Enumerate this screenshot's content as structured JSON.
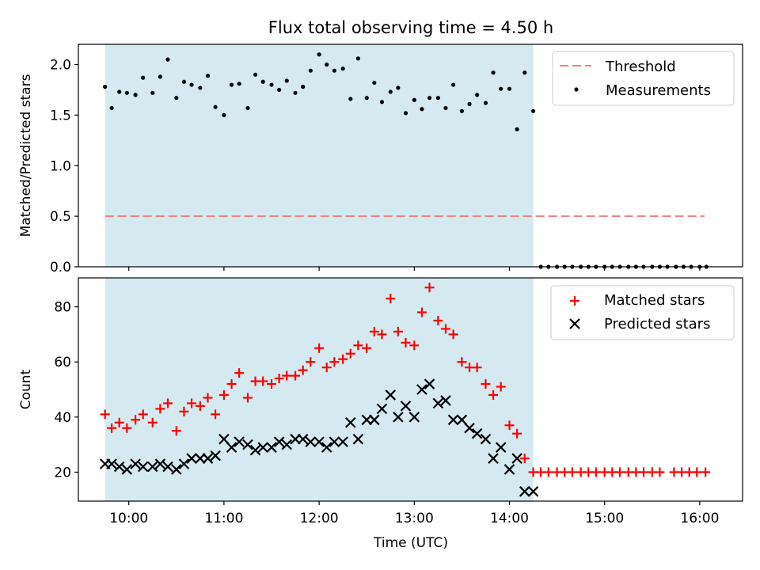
{
  "chart_data": [
    {
      "type": "scatter",
      "title": "Flux total observing time = 4.50 h",
      "xlabel": "",
      "ylabel": "Matched/Predicted stars",
      "xlim": [
        9.47,
        16.45
      ],
      "ylim": [
        0.0,
        2.2
      ],
      "yticks": [
        0.0,
        0.5,
        1.0,
        1.5,
        2.0
      ],
      "ytick_labels": [
        "0.0",
        "0.5",
        "1.0",
        "1.5",
        "2.0"
      ],
      "observing_window": [
        9.75,
        14.25
      ],
      "shade_color": "#d4eaf0",
      "legend_position": "upper right",
      "threshold": {
        "name": "Threshold",
        "y": 0.5,
        "x": [
          9.75,
          16.05
        ],
        "color": "#f08080",
        "style": "dashed"
      },
      "series": [
        {
          "name": "Measurements",
          "color": "#000000",
          "marker": "dot",
          "x": [
            9.75,
            9.82,
            9.9,
            9.98,
            10.07,
            10.15,
            10.25,
            10.33,
            10.41,
            10.5,
            10.58,
            10.66,
            10.75,
            10.83,
            10.91,
            11.0,
            11.08,
            11.16,
            11.25,
            11.33,
            11.41,
            11.5,
            11.58,
            11.66,
            11.75,
            11.83,
            11.91,
            12.0,
            12.08,
            12.16,
            12.25,
            12.33,
            12.41,
            12.5,
            12.58,
            12.66,
            12.75,
            12.83,
            12.91,
            13.0,
            13.08,
            13.16,
            13.25,
            13.33,
            13.41,
            13.5,
            13.58,
            13.66,
            13.75,
            13.83,
            13.91,
            14.0,
            14.08,
            14.16,
            14.25,
            14.33,
            14.41,
            14.5,
            14.58,
            14.66,
            14.75,
            14.83,
            14.91,
            15.0,
            15.08,
            15.16,
            15.25,
            15.33,
            15.41,
            15.5,
            15.58,
            15.66,
            15.75,
            15.83,
            15.91,
            16.0,
            16.07
          ],
          "y": [
            1.78,
            1.57,
            1.73,
            1.72,
            1.7,
            1.87,
            1.72,
            1.88,
            2.05,
            1.67,
            1.83,
            1.8,
            1.77,
            1.89,
            1.58,
            1.5,
            1.8,
            1.81,
            1.57,
            1.9,
            1.83,
            1.8,
            1.75,
            1.84,
            1.72,
            1.78,
            1.94,
            2.1,
            2.0,
            1.94,
            1.96,
            1.66,
            2.06,
            1.67,
            1.82,
            1.63,
            1.73,
            1.77,
            1.52,
            1.65,
            1.56,
            1.67,
            1.67,
            1.57,
            1.8,
            1.54,
            1.61,
            1.7,
            1.62,
            1.92,
            1.76,
            1.76,
            1.36,
            1.92,
            1.54,
            0.0,
            0.0,
            0.0,
            0.0,
            0.0,
            0.0,
            0.0,
            0.0,
            0.0,
            0.0,
            0.0,
            0.0,
            0.0,
            0.0,
            0.0,
            0.0,
            0.0,
            0.0,
            0.0,
            0.0,
            0.0,
            0.0
          ]
        }
      ]
    },
    {
      "type": "scatter",
      "title": "",
      "xlabel": "Time (UTC)",
      "ylabel": "Count",
      "xlim": [
        9.47,
        16.45
      ],
      "ylim": [
        9.5,
        90.5
      ],
      "yticks": [
        20,
        40,
        60,
        80
      ],
      "ytick_labels": [
        "20",
        "40",
        "60",
        "80"
      ],
      "xticks": [
        10,
        11,
        12,
        13,
        14,
        15,
        16
      ],
      "xtick_labels": [
        "10:00",
        "11:00",
        "12:00",
        "13:00",
        "14:00",
        "15:00",
        "16:00"
      ],
      "observing_window": [
        9.75,
        14.25
      ],
      "shade_color": "#d4eaf0",
      "legend_position": "upper right",
      "series": [
        {
          "name": "Matched stars",
          "color": "#ff0000",
          "marker": "plus",
          "x": [
            9.75,
            9.82,
            9.9,
            9.98,
            10.07,
            10.15,
            10.25,
            10.33,
            10.41,
            10.5,
            10.58,
            10.66,
            10.75,
            10.83,
            10.91,
            11.0,
            11.08,
            11.16,
            11.25,
            11.33,
            11.41,
            11.5,
            11.58,
            11.66,
            11.75,
            11.83,
            11.91,
            12.0,
            12.08,
            12.16,
            12.25,
            12.33,
            12.41,
            12.5,
            12.58,
            12.66,
            12.75,
            12.83,
            12.91,
            13.0,
            13.08,
            13.16,
            13.25,
            13.33,
            13.41,
            13.5,
            13.58,
            13.66,
            13.75,
            13.83,
            13.91,
            14.0,
            14.08,
            14.16,
            14.25,
            14.33,
            14.41,
            14.5,
            14.58,
            14.66,
            14.75,
            14.83,
            14.91,
            15.0,
            15.08,
            15.16,
            15.25,
            15.33,
            15.41,
            15.5,
            15.58,
            15.73,
            15.81,
            15.89,
            15.97,
            16.06
          ],
          "y": [
            41,
            36,
            38,
            36,
            39,
            41,
            38,
            43,
            45,
            35,
            42,
            45,
            44,
            47,
            41,
            48,
            52,
            56,
            47,
            53,
            53,
            52,
            54,
            55,
            55,
            57,
            60,
            65,
            58,
            60,
            61,
            63,
            66,
            65,
            71,
            70,
            83,
            71,
            67,
            66,
            78,
            87,
            75,
            72,
            70,
            60,
            58,
            58,
            52,
            48,
            51,
            37,
            34,
            25,
            20,
            20,
            20,
            20,
            20,
            20,
            20,
            20,
            20,
            20,
            20,
            20,
            20,
            20,
            20,
            20,
            20,
            20,
            20,
            20,
            20,
            20
          ]
        },
        {
          "name": "Predicted stars",
          "color": "#000000",
          "marker": "x",
          "x": [
            9.75,
            9.82,
            9.9,
            9.98,
            10.07,
            10.15,
            10.25,
            10.33,
            10.41,
            10.5,
            10.58,
            10.66,
            10.75,
            10.83,
            10.91,
            11.0,
            11.08,
            11.16,
            11.25,
            11.33,
            11.41,
            11.5,
            11.58,
            11.66,
            11.75,
            11.83,
            11.91,
            12.0,
            12.08,
            12.16,
            12.25,
            12.33,
            12.41,
            12.5,
            12.58,
            12.66,
            12.75,
            12.83,
            12.91,
            13.0,
            13.08,
            13.16,
            13.25,
            13.33,
            13.41,
            13.5,
            13.58,
            13.66,
            13.75,
            13.83,
            13.91,
            14.0,
            14.08,
            14.16,
            14.25
          ],
          "y": [
            23,
            23,
            22,
            21,
            23,
            22,
            22,
            23,
            22,
            21,
            23,
            25,
            25,
            25,
            26,
            32,
            29,
            31,
            30,
            28,
            29,
            29,
            31,
            30,
            32,
            32,
            31,
            31,
            29,
            31,
            31,
            38,
            32,
            39,
            39,
            43,
            48,
            40,
            44,
            40,
            50,
            52,
            45,
            46,
            39,
            39,
            36,
            34,
            32,
            25,
            29,
            21,
            25,
            13,
            13
          ]
        }
      ]
    }
  ]
}
